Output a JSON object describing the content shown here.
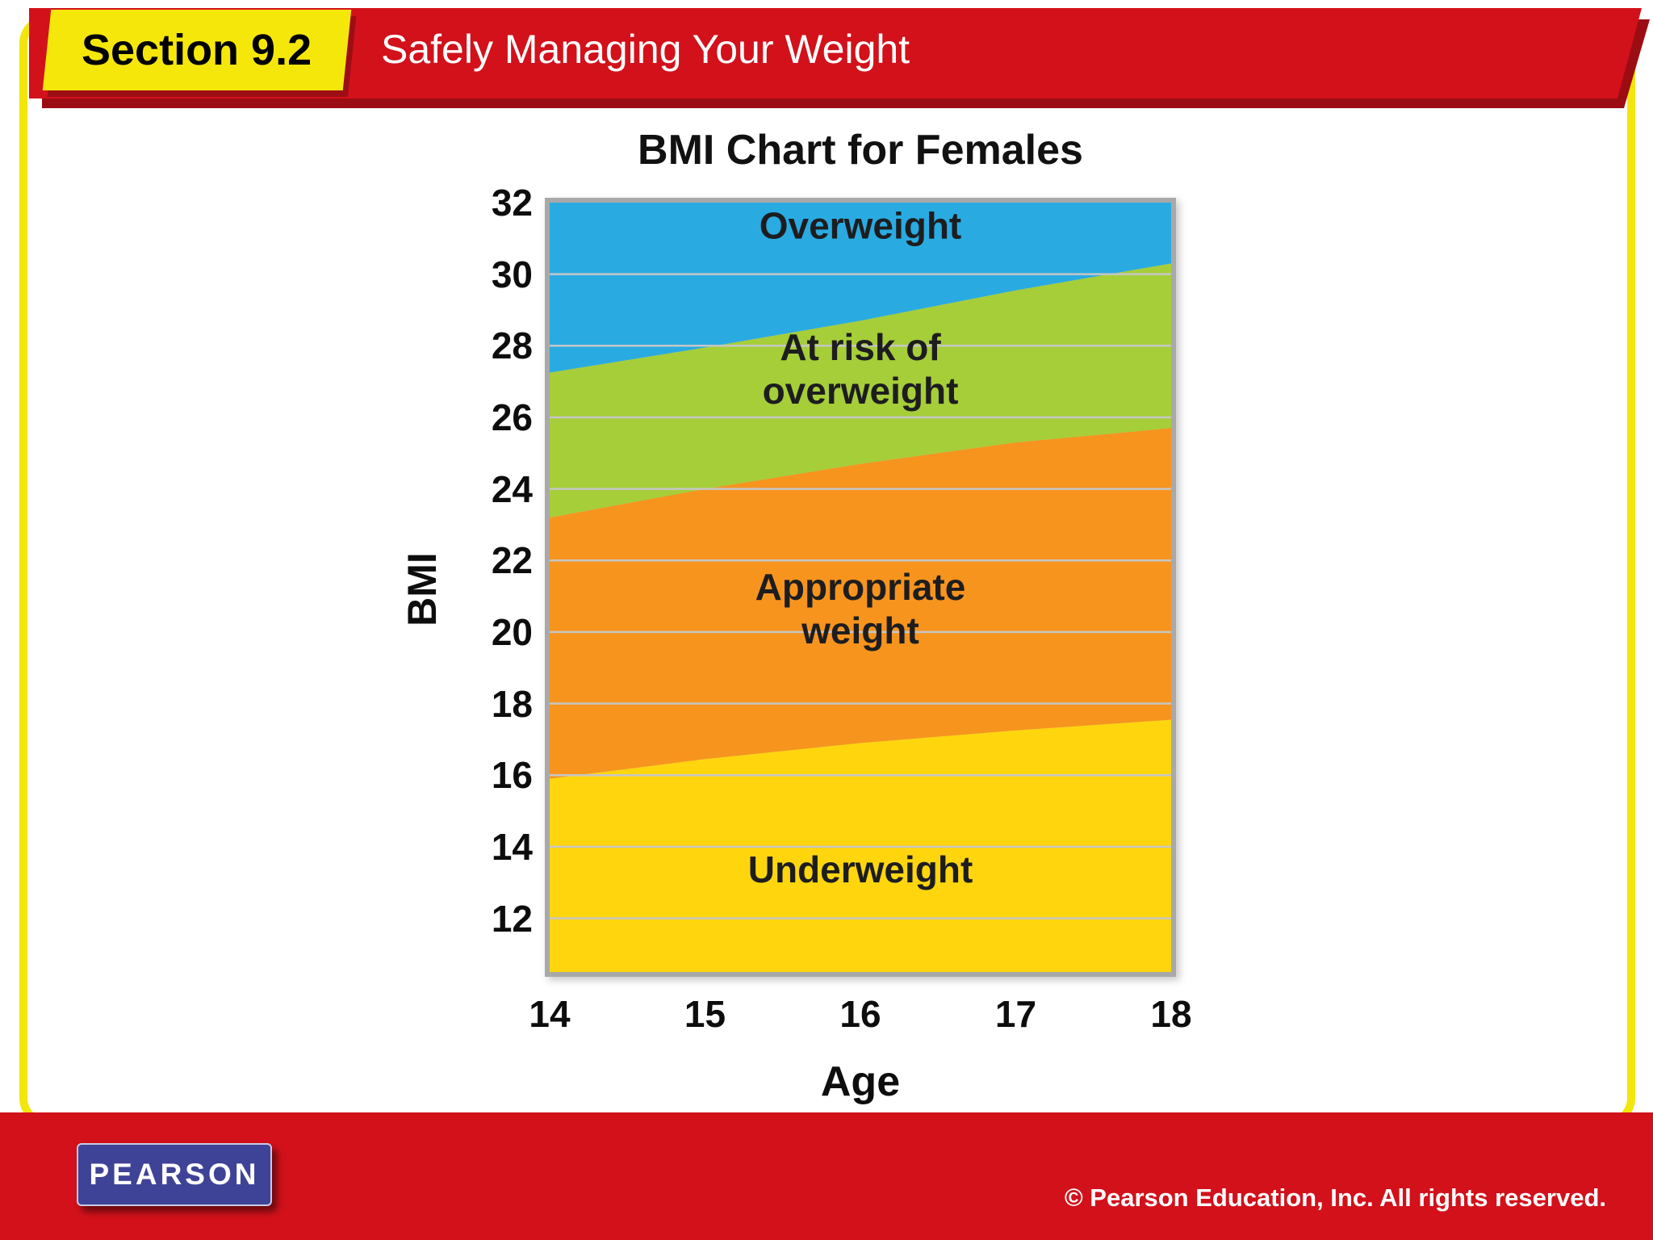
{
  "slide": {
    "section_label": "Section 9.2",
    "title": "Safely Managing Your Weight",
    "footer": {
      "logo_text": "PEARSON",
      "copyright": "© Pearson Education, Inc. All rights reserved."
    },
    "colors": {
      "header_red": "#d2111b",
      "header_red_shadow": "#9c0d13",
      "accent_yellow": "#f6e70a",
      "logo_blue": "#3f4397"
    }
  },
  "chart_data": {
    "type": "area",
    "title": "BMI Chart for Females",
    "xlabel": "Age",
    "ylabel": "BMI",
    "x": [
      14,
      15,
      16,
      17,
      18
    ],
    "xlim": [
      14,
      18
    ],
    "ylim": [
      10.5,
      32
    ],
    "xticks": [
      14,
      15,
      16,
      17,
      18
    ],
    "yticks": [
      12,
      14,
      16,
      18,
      20,
      22,
      24,
      26,
      28,
      30,
      32
    ],
    "grid": true,
    "grid_color": "#c6c6c6",
    "frame_color": "#a9a9a9",
    "legend_position": "none",
    "zones": [
      {
        "label": "Underweight",
        "label_lines": [
          "Underweight"
        ],
        "label_pos": {
          "x": 16,
          "y": 13.0
        },
        "color": "#ffd60d",
        "upper": [
          15.9,
          16.45,
          16.9,
          17.25,
          17.55
        ]
      },
      {
        "label": "Appropriate weight",
        "label_lines": [
          "Appropriate",
          "weight"
        ],
        "label_pos": {
          "x": 16,
          "y": 20.9
        },
        "color": "#f7941e",
        "upper": [
          23.2,
          24.0,
          24.7,
          25.3,
          25.7
        ]
      },
      {
        "label": "At risk of overweight",
        "label_lines": [
          "At risk of",
          "overweight"
        ],
        "label_pos": {
          "x": 16,
          "y": 27.6
        },
        "color": "#a6ce39",
        "upper": [
          27.25,
          27.95,
          28.7,
          29.55,
          30.3
        ]
      },
      {
        "label": "Overweight",
        "label_lines": [
          "Overweight"
        ],
        "label_pos": {
          "x": 16,
          "y": 31.0
        },
        "color": "#29abe2",
        "upper": [
          32,
          32,
          32,
          32,
          32
        ]
      }
    ]
  }
}
